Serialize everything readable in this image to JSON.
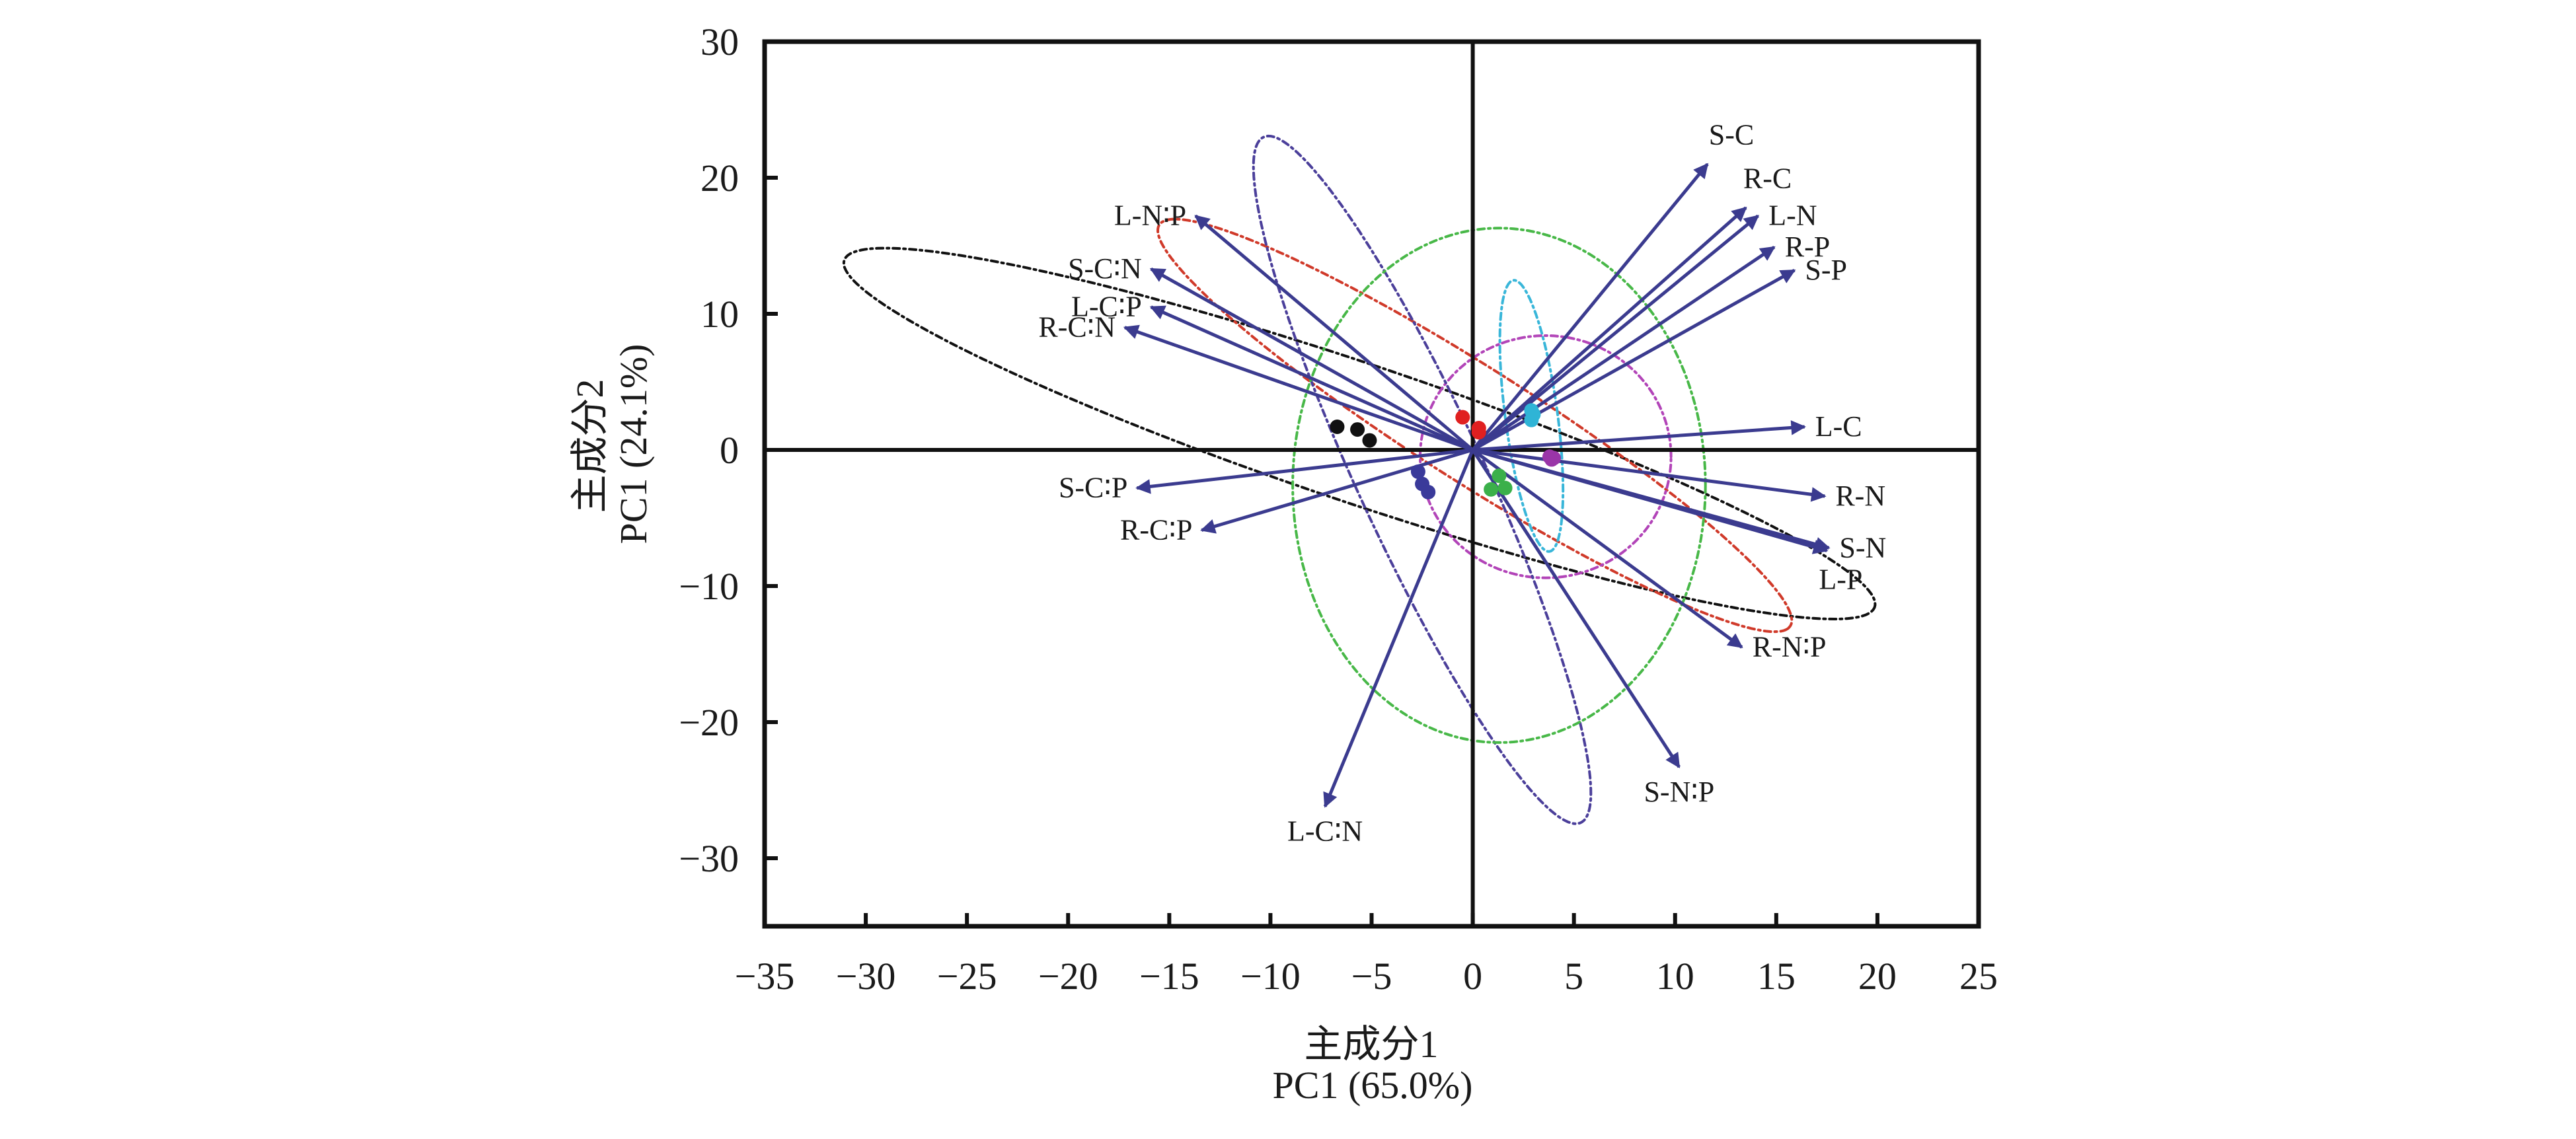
{
  "chart_data": {
    "type": "scatter",
    "subtype": "pca-biplot",
    "title": "",
    "xlabel_cn": "主成分1",
    "xlabel": "PC1 (65.0%)",
    "ylabel_cn": "主成分2",
    "ylabel": "PC1 (24.1%)",
    "xlim": [
      -35,
      25
    ],
    "ylim": [
      -35,
      30
    ],
    "xticks": [
      -35,
      -30,
      -25,
      -20,
      -15,
      -10,
      -5,
      0,
      5,
      10,
      15,
      20,
      25
    ],
    "yticks": [
      -30,
      -20,
      -10,
      0,
      10,
      20,
      30
    ],
    "xtick_labels": [
      "−35",
      "−30",
      "−25",
      "−20",
      "−15",
      "−10",
      "−5",
      "0",
      "5",
      "10",
      "15",
      "20",
      "25"
    ],
    "ytick_labels": [
      "−30",
      "−20",
      "−10",
      "0",
      "10",
      "20",
      "30"
    ],
    "grid": false,
    "zero_lines": true,
    "loading_color": "#3b3b8f",
    "loadings": [
      {
        "name": "S-C",
        "x": 11.6,
        "y": 21.0,
        "label_pos": "above"
      },
      {
        "name": "R-C",
        "x": 13.5,
        "y": 17.8,
        "label_pos": "above-right"
      },
      {
        "name": "L-N",
        "x": 14.1,
        "y": 17.2,
        "label_pos": "right"
      },
      {
        "name": "R-P",
        "x": 14.9,
        "y": 14.9,
        "label_pos": "right"
      },
      {
        "name": "S-P",
        "x": 15.9,
        "y": 13.2,
        "label_pos": "right"
      },
      {
        "name": "L-C",
        "x": 16.4,
        "y": 1.7,
        "label_pos": "right"
      },
      {
        "name": "R-N",
        "x": 17.4,
        "y": -3.4,
        "label_pos": "right"
      },
      {
        "name": "S-N",
        "x": 17.6,
        "y": -7.2,
        "label_pos": "right"
      },
      {
        "name": "L-P",
        "x": 17.5,
        "y": -7.4,
        "label_pos": "below-right"
      },
      {
        "name": "R-N∶P",
        "x": 13.3,
        "y": -14.5,
        "label_pos": "right"
      },
      {
        "name": "S-N∶P",
        "x": 10.2,
        "y": -23.3,
        "label_pos": "below"
      },
      {
        "name": "L-C∶N",
        "x": -7.3,
        "y": -26.2,
        "label_pos": "below"
      },
      {
        "name": "R-C∶P",
        "x": -13.4,
        "y": -5.9,
        "label_pos": "left"
      },
      {
        "name": "S-C∶P",
        "x": -16.6,
        "y": -2.8,
        "label_pos": "left"
      },
      {
        "name": "R-C∶N",
        "x": -17.2,
        "y": 9.0,
        "label_pos": "left"
      },
      {
        "name": "L-C∶P",
        "x": -15.9,
        "y": 10.5,
        "label_pos": "left"
      },
      {
        "name": "S-C∶N",
        "x": -15.9,
        "y": 13.3,
        "label_pos": "left"
      },
      {
        "name": "L-N∶P",
        "x": -13.7,
        "y": 17.2,
        "label_pos": "left"
      }
    ],
    "groups": [
      {
        "name": "group-black",
        "color": "#111111",
        "points": [
          [
            -6.7,
            1.7
          ],
          [
            -5.7,
            1.5
          ],
          [
            -5.1,
            0.7
          ]
        ],
        "ellipse": {
          "cx": -5.6,
          "cy": 1.2,
          "rx": 28.5,
          "ry": 4.8,
          "angle_deg": -27,
          "color": "#111111"
        }
      },
      {
        "name": "group-red",
        "color": "#e02020",
        "points": [
          [
            -0.5,
            2.4
          ],
          [
            0.3,
            1.6
          ],
          [
            0.3,
            1.3
          ]
        ],
        "ellipse": {
          "cx": 0.1,
          "cy": 1.8,
          "rx": 21.5,
          "ry": 3.6,
          "angle_deg": -44,
          "color": "#d03a2a"
        }
      },
      {
        "name": "group-cyan",
        "color": "#2fb4d6",
        "points": [
          [
            2.9,
            2.9
          ],
          [
            2.9,
            2.2
          ],
          [
            3.0,
            2.6
          ]
        ],
        "ellipse": {
          "cx": 2.9,
          "cy": 2.5,
          "rx": 1.3,
          "ry": 10.0,
          "angle_deg": 5,
          "color": "#39b6d9"
        }
      },
      {
        "name": "group-purple",
        "color": "#9a35a8",
        "points": [
          [
            3.9,
            -0.7
          ],
          [
            4.0,
            -0.6
          ],
          [
            3.8,
            -0.5
          ]
        ],
        "ellipse": {
          "cx": 3.6,
          "cy": -0.5,
          "rx": 6.2,
          "ry": 8.9,
          "angle_deg": 0,
          "color": "#b244b8"
        }
      },
      {
        "name": "group-blue",
        "color": "#3a3a9a",
        "points": [
          [
            -2.7,
            -1.6
          ],
          [
            -2.5,
            -2.5
          ],
          [
            -2.2,
            -3.1
          ]
        ],
        "ellipse": {
          "cx": -2.5,
          "cy": -2.2,
          "rx": 3.3,
          "ry": 26.4,
          "angle_deg": 17,
          "color": "#4b3f9a"
        }
      },
      {
        "name": "group-green",
        "color": "#3bb04a",
        "points": [
          [
            1.3,
            -1.9
          ],
          [
            0.9,
            -2.9
          ],
          [
            1.6,
            -2.8
          ]
        ],
        "ellipse": {
          "cx": 1.3,
          "cy": -2.6,
          "rx": 10.2,
          "ry": 18.9,
          "angle_deg": 0,
          "color": "#48b848"
        }
      }
    ]
  }
}
